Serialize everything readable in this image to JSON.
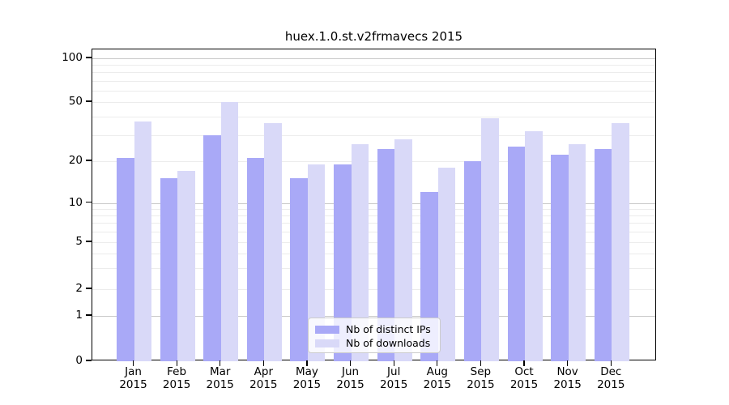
{
  "chart_data": {
    "type": "bar",
    "title": "huex.1.0.st.v2frmavecs 2015",
    "categories": [
      "Jan",
      "Feb",
      "Mar",
      "Apr",
      "May",
      "Jun",
      "Jul",
      "Aug",
      "Sep",
      "Oct",
      "Nov",
      "Dec"
    ],
    "category_year": "2015",
    "series": [
      {
        "name": "Nb of distinct IPs",
        "color": "#a9a9f7",
        "values": [
          21,
          15,
          30,
          21,
          15,
          19,
          24,
          12,
          20,
          25,
          22,
          24
        ]
      },
      {
        "name": "Nb of downloads",
        "color": "#d9d9f8",
        "values": [
          37,
          17,
          50,
          36,
          19,
          26,
          28,
          18,
          39,
          32,
          26,
          36
        ]
      }
    ],
    "yticks": [
      0,
      1,
      2,
      5,
      10,
      20,
      50,
      100
    ],
    "yscale": "log-like with 0 baseline",
    "ylim": [
      0,
      116
    ],
    "grid": true,
    "legend_position": "bottom-center"
  }
}
